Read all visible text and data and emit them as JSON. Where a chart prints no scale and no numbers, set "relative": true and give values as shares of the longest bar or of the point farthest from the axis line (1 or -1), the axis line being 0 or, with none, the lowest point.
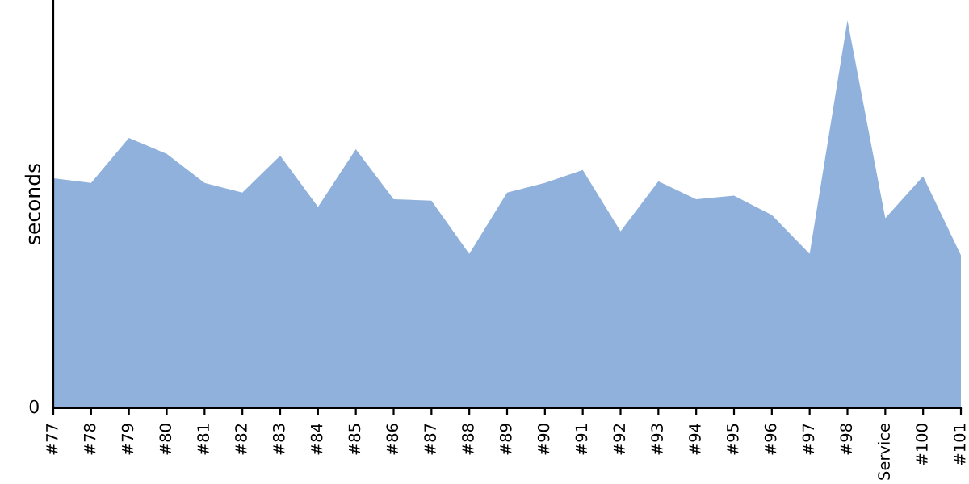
{
  "chart_data": {
    "type": "area",
    "ylabel": "seconds",
    "relative": true,
    "annotations": [
      "0"
    ],
    "color": "#8fb1db",
    "grid": false,
    "legend": false,
    "categories": [
      "#77",
      "#78",
      "#79",
      "#80",
      "#81",
      "#82",
      "#83",
      "#84",
      "#85",
      "#86",
      "#87",
      "#88",
      "#89",
      "#90",
      "#91",
      "#92",
      "#93",
      "#94",
      "#95",
      "#96",
      "#97",
      "#98",
      "Service",
      "#100",
      "#101"
    ],
    "values": [
      0.593,
      0.581,
      0.697,
      0.656,
      0.581,
      0.556,
      0.651,
      0.519,
      0.668,
      0.539,
      0.535,
      0.398,
      0.556,
      0.581,
      0.614,
      0.456,
      0.585,
      0.539,
      0.548,
      0.498,
      0.398,
      1,
      0.49,
      0.598,
      0.394
    ]
  }
}
